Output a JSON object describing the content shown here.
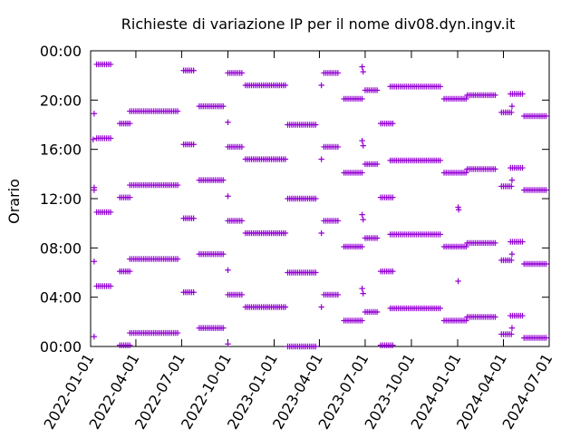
{
  "chart_data": {
    "type": "scatter",
    "title": "Richieste di variazione IP per il nome div08.dyn.ingv.it",
    "xlabel": "",
    "ylabel": "Orario",
    "xlim": [
      "2022-01-01",
      "2024-07-01"
    ],
    "ylim": [
      0,
      24
    ],
    "x_ticks": [
      "2022-01-01",
      "2022-04-01",
      "2022-07-01",
      "2022-10-01",
      "2023-01-01",
      "2023-04-01",
      "2023-07-01",
      "2023-10-01",
      "2024-01-01",
      "2024-04-01",
      "2024-07-01"
    ],
    "y_ticks": [
      "00:00",
      "04:00",
      "08:00",
      "12:00",
      "16:00",
      "20:00",
      "00:00"
    ],
    "y_tick_values": [
      0,
      4,
      8,
      12,
      16,
      20,
      24
    ],
    "marker": "+",
    "color": "#9400d3",
    "grid": false,
    "segments": [
      {
        "x0": "2022-01-13",
        "x1": "2022-02-10",
        "hours": [
          4.9,
          10.9,
          16.9,
          22.9
        ]
      },
      {
        "x0": "2022-02-28",
        "x1": "2022-03-20",
        "hours": [
          0.1,
          6.1,
          12.1,
          18.1
        ]
      },
      {
        "x0": "2022-03-20",
        "x1": "2022-06-25",
        "hours": [
          1.1,
          7.1,
          13.1,
          19.1
        ]
      },
      {
        "x0": "2022-07-05",
        "x1": "2022-07-28",
        "hours": [
          4.4,
          10.4,
          16.4,
          22.4
        ]
      },
      {
        "x0": "2022-08-05",
        "x1": "2022-09-25",
        "hours": [
          1.5,
          7.5,
          13.5,
          19.5
        ]
      },
      {
        "x0": "2022-10-01",
        "x1": "2022-11-01",
        "hours": [
          4.2,
          10.2,
          16.2,
          22.2
        ]
      },
      {
        "x0": "2022-11-05",
        "x1": "2023-01-25",
        "hours": [
          3.2,
          9.2,
          15.2,
          21.2
        ]
      },
      {
        "x0": "2023-01-28",
        "x1": "2023-03-28",
        "hours": [
          0.0,
          6.0,
          12.0,
          18.0
        ]
      },
      {
        "x0": "2023-04-10",
        "x1": "2023-05-10",
        "hours": [
          4.2,
          10.2,
          16.2,
          22.2
        ]
      },
      {
        "x0": "2023-05-20",
        "x1": "2023-06-25",
        "hours": [
          2.1,
          8.1,
          14.1,
          20.1
        ]
      },
      {
        "x0": "2023-07-01",
        "x1": "2023-07-25",
        "hours": [
          2.8,
          8.8,
          14.8,
          20.8
        ]
      },
      {
        "x0": "2023-08-01",
        "x1": "2023-08-25",
        "hours": [
          0.1,
          6.1,
          12.1,
          18.1
        ]
      },
      {
        "x0": "2023-08-20",
        "x1": "2023-11-28",
        "hours": [
          3.1,
          9.1,
          15.1,
          21.1
        ]
      },
      {
        "x0": "2023-12-05",
        "x1": "2024-01-20",
        "hours": [
          2.1,
          8.1,
          14.1,
          20.1
        ]
      },
      {
        "x0": "2024-01-20",
        "x1": "2024-03-18",
        "hours": [
          2.4,
          8.4,
          14.4,
          20.4
        ]
      },
      {
        "x0": "2024-03-28",
        "x1": "2024-04-20",
        "hours": [
          1.0,
          7.0,
          13.0,
          19.0
        ]
      },
      {
        "x0": "2024-04-15",
        "x1": "2024-05-10",
        "hours": [
          2.5,
          8.5,
          14.5,
          20.5
        ]
      },
      {
        "x0": "2024-05-12",
        "x1": "2024-06-28",
        "hours": [
          0.7,
          6.7,
          12.7,
          18.7
        ]
      }
    ],
    "isolated_points": [
      {
        "x": "2022-01-08",
        "hours": [
          0.8,
          6.9,
          12.9,
          18.9
        ]
      },
      {
        "x": "2022-01-06",
        "hours": [
          16.8
        ]
      },
      {
        "x": "2022-01-08",
        "hours": [
          12.7
        ]
      },
      {
        "x": "2022-10-01",
        "hours": [
          0.2,
          6.2,
          12.2,
          18.2
        ]
      },
      {
        "x": "2023-04-05",
        "hours": [
          3.2,
          9.2,
          15.2,
          21.2
        ]
      },
      {
        "x": "2023-06-25",
        "hours": [
          4.7,
          10.7,
          16.7,
          22.7
        ]
      },
      {
        "x": "2023-06-27",
        "hours": [
          4.3,
          10.3,
          16.3,
          22.3
        ]
      },
      {
        "x": "2024-01-02",
        "hours": [
          5.3,
          11.3
        ]
      },
      {
        "x": "2024-01-03",
        "hours": [
          11.1
        ]
      },
      {
        "x": "2024-04-18",
        "hours": [
          1.5,
          7.5,
          13.5,
          19.5
        ]
      }
    ]
  }
}
